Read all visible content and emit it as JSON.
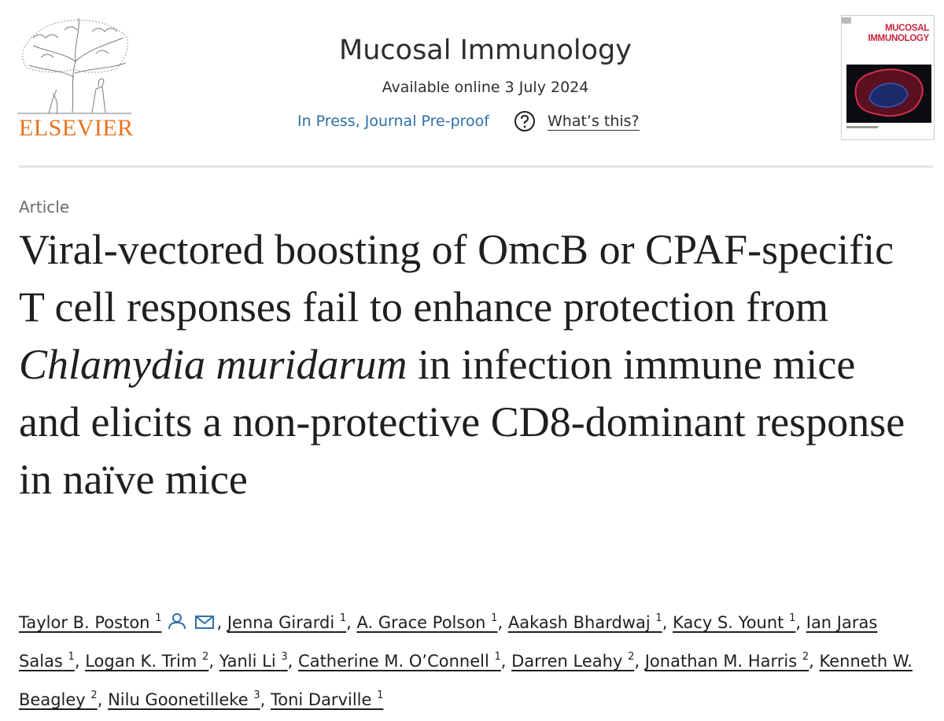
{
  "header": {
    "publisher": "ELSEVIER",
    "journal": "Mucosal Immunology",
    "available": "Available online 3 July 2024",
    "status": "In Press, Journal Pre-proof",
    "help": "What’s this?",
    "cover_title": [
      "MUCOSAL",
      "IMMUNOLOGY"
    ]
  },
  "article": {
    "type": "Article",
    "title": [
      "Viral-vectored boosting of OmcB or CPAF-specific T cell responses fail to enhance protection from ",
      "Chlamydia muridarum",
      " in infection immune mice and elicits a non-protective CD8-dominant response in naïve mice"
    ],
    "authors": {
      "separator": ",",
      "list": [
        {
          "name": "Taylor B. Poston",
          "affiliation": 1
        },
        {
          "name": "Jenna Girardi",
          "affiliation": 1
        },
        {
          "name": "A. Grace Polson",
          "affiliation": 1
        },
        {
          "name": "Aakash Bhardwaj",
          "affiliation": 1
        },
        {
          "name": "Kacy S. Yount",
          "affiliation": 1
        },
        {
          "name": "Ian Jaras Salas",
          "affiliation": 1
        },
        {
          "name": "Logan K. Trim",
          "affiliation": 2
        },
        {
          "name": "Yanli Li",
          "affiliation": 3
        },
        {
          "name": "Catherine M. O’Connell",
          "affiliation": 1
        },
        {
          "name": "Darren Leahy",
          "affiliation": 2
        },
        {
          "name": "Jonathan M. Harris",
          "affiliation": 2
        },
        {
          "name": "Kenneth W. Beagley",
          "affiliation": 2
        },
        {
          "name": "Nilu Goonetilleke",
          "affiliation": 3
        },
        {
          "name": "Toni Darville",
          "affiliation": 1
        }
      ]
    }
  }
}
